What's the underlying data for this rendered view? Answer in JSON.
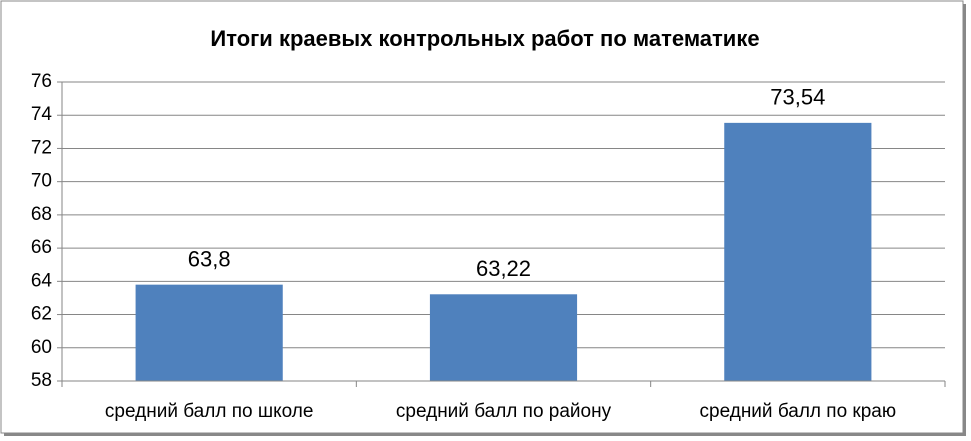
{
  "chart_data": {
    "type": "bar",
    "title": "Итоги краевых контрольных работ по математике",
    "categories": [
      "средний балл по школе",
      "средний балл по району",
      "средний балл по краю"
    ],
    "values": [
      63.8,
      63.22,
      73.54
    ],
    "value_labels": [
      "63,8",
      "63,22",
      "73,54"
    ],
    "color": "#4f81bd",
    "ylim": [
      58,
      76
    ],
    "yticks": [
      58,
      60,
      62,
      64,
      66,
      68,
      70,
      72,
      74,
      76
    ],
    "grid": true
  }
}
